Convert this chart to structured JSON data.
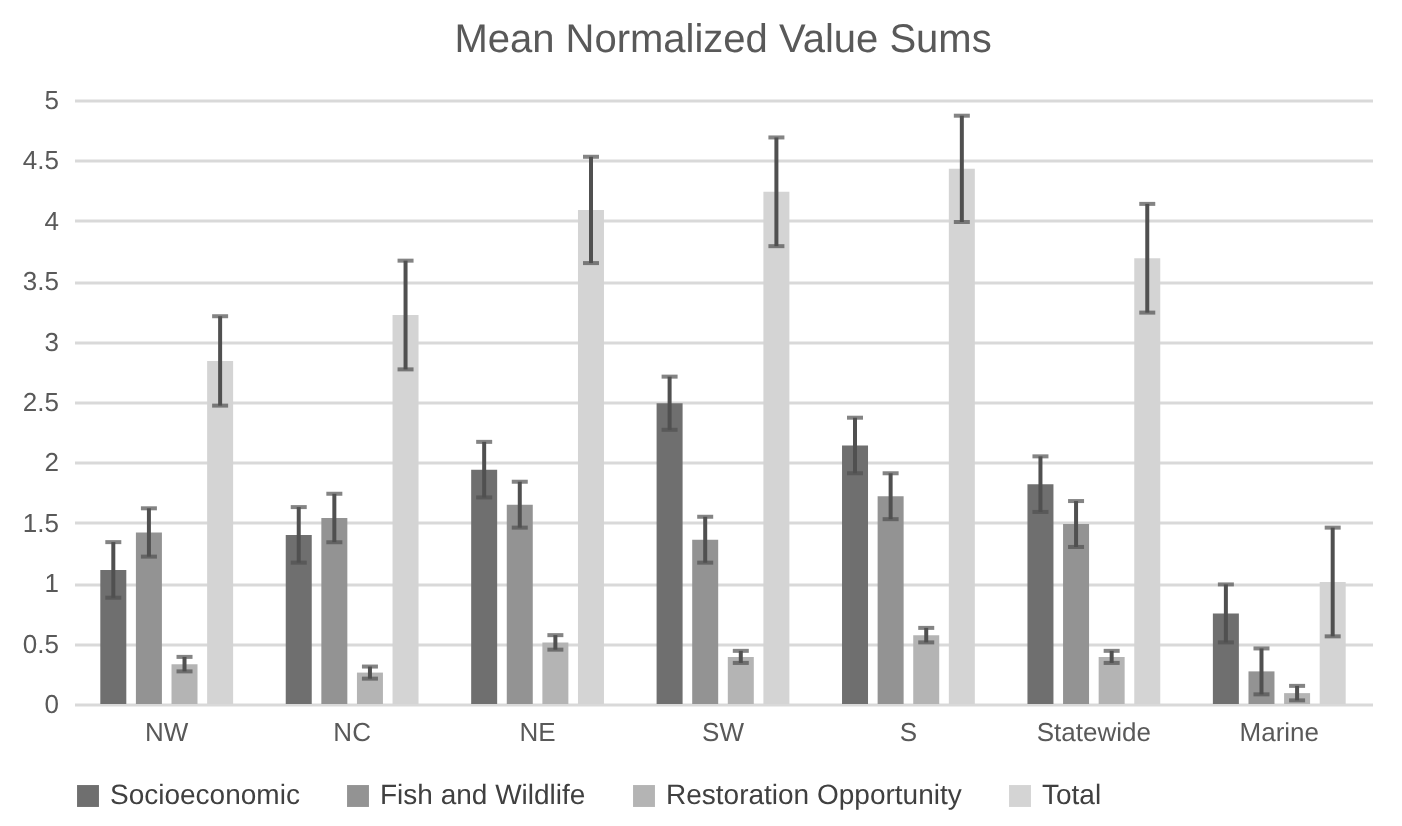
{
  "chart_data": {
    "type": "bar",
    "title": "Mean Normalized Value Sums",
    "categories": [
      "NW",
      "NC",
      "NE",
      "SW",
      "S",
      "Statewide",
      "Marine"
    ],
    "series": [
      {
        "name": "Socioeconomic",
        "color": "#6f6f6f",
        "values": [
          1.11,
          1.4,
          1.94,
          2.49,
          2.14,
          1.82,
          0.75
        ],
        "errors": [
          0.23,
          0.23,
          0.23,
          0.22,
          0.23,
          0.23,
          0.24
        ]
      },
      {
        "name": "Fish and Wildlife",
        "color": "#939393",
        "values": [
          1.42,
          1.54,
          1.65,
          1.36,
          1.72,
          1.49,
          0.27
        ],
        "errors": [
          0.2,
          0.2,
          0.19,
          0.19,
          0.19,
          0.19,
          0.19
        ]
      },
      {
        "name": "Restoration Opportunity",
        "color": "#b4b4b4",
        "values": [
          0.33,
          0.26,
          0.51,
          0.39,
          0.57,
          0.39,
          0.09
        ],
        "errors": [
          0.06,
          0.05,
          0.06,
          0.05,
          0.06,
          0.05,
          0.06
        ]
      },
      {
        "name": "Total",
        "color": "#d4d4d4",
        "values": [
          2.84,
          3.22,
          4.09,
          4.24,
          4.43,
          3.69,
          1.01
        ],
        "errors": [
          0.37,
          0.45,
          0.44,
          0.45,
          0.44,
          0.45,
          0.45
        ]
      }
    ],
    "ylim": [
      0,
      5
    ],
    "yticks": [
      0,
      0.5,
      1,
      1.5,
      2,
      2.5,
      3,
      3.5,
      4,
      4.5,
      5
    ],
    "grid": "y",
    "legend": "bottom"
  }
}
